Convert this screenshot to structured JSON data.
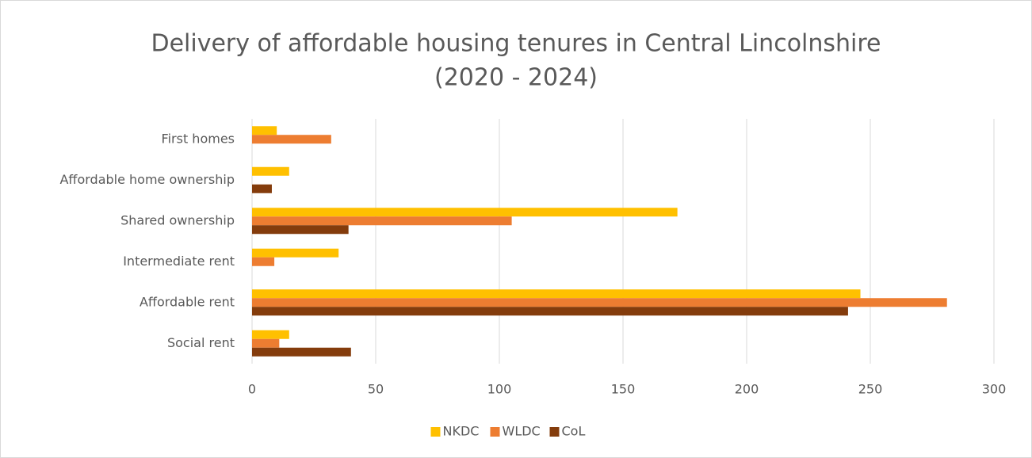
{
  "chart_data": {
    "type": "hbar",
    "title": [
      "Delivery of affordable housing tenures in Central Lincolnshire",
      "(2020 - 2024)"
    ],
    "categories": [
      "First homes",
      "Affordable home ownership",
      "Shared ownership",
      "Intermediate rent",
      "Affordable rent",
      "Social rent"
    ],
    "series": [
      {
        "name": "NKDC",
        "color": "#ffc000",
        "values": [
          10,
          15,
          172,
          35,
          246,
          15
        ]
      },
      {
        "name": "WLDC",
        "color": "#ed7d31",
        "values": [
          32,
          null,
          105,
          9,
          281,
          11
        ]
      },
      {
        "name": "CoL",
        "color": "#843c0c",
        "values": [
          null,
          8,
          39,
          null,
          241,
          40
        ]
      }
    ],
    "xlim": [
      0,
      300
    ],
    "xticks": [
      0,
      50,
      100,
      150,
      200,
      250,
      300
    ],
    "grid": true,
    "legend": "bottom"
  }
}
